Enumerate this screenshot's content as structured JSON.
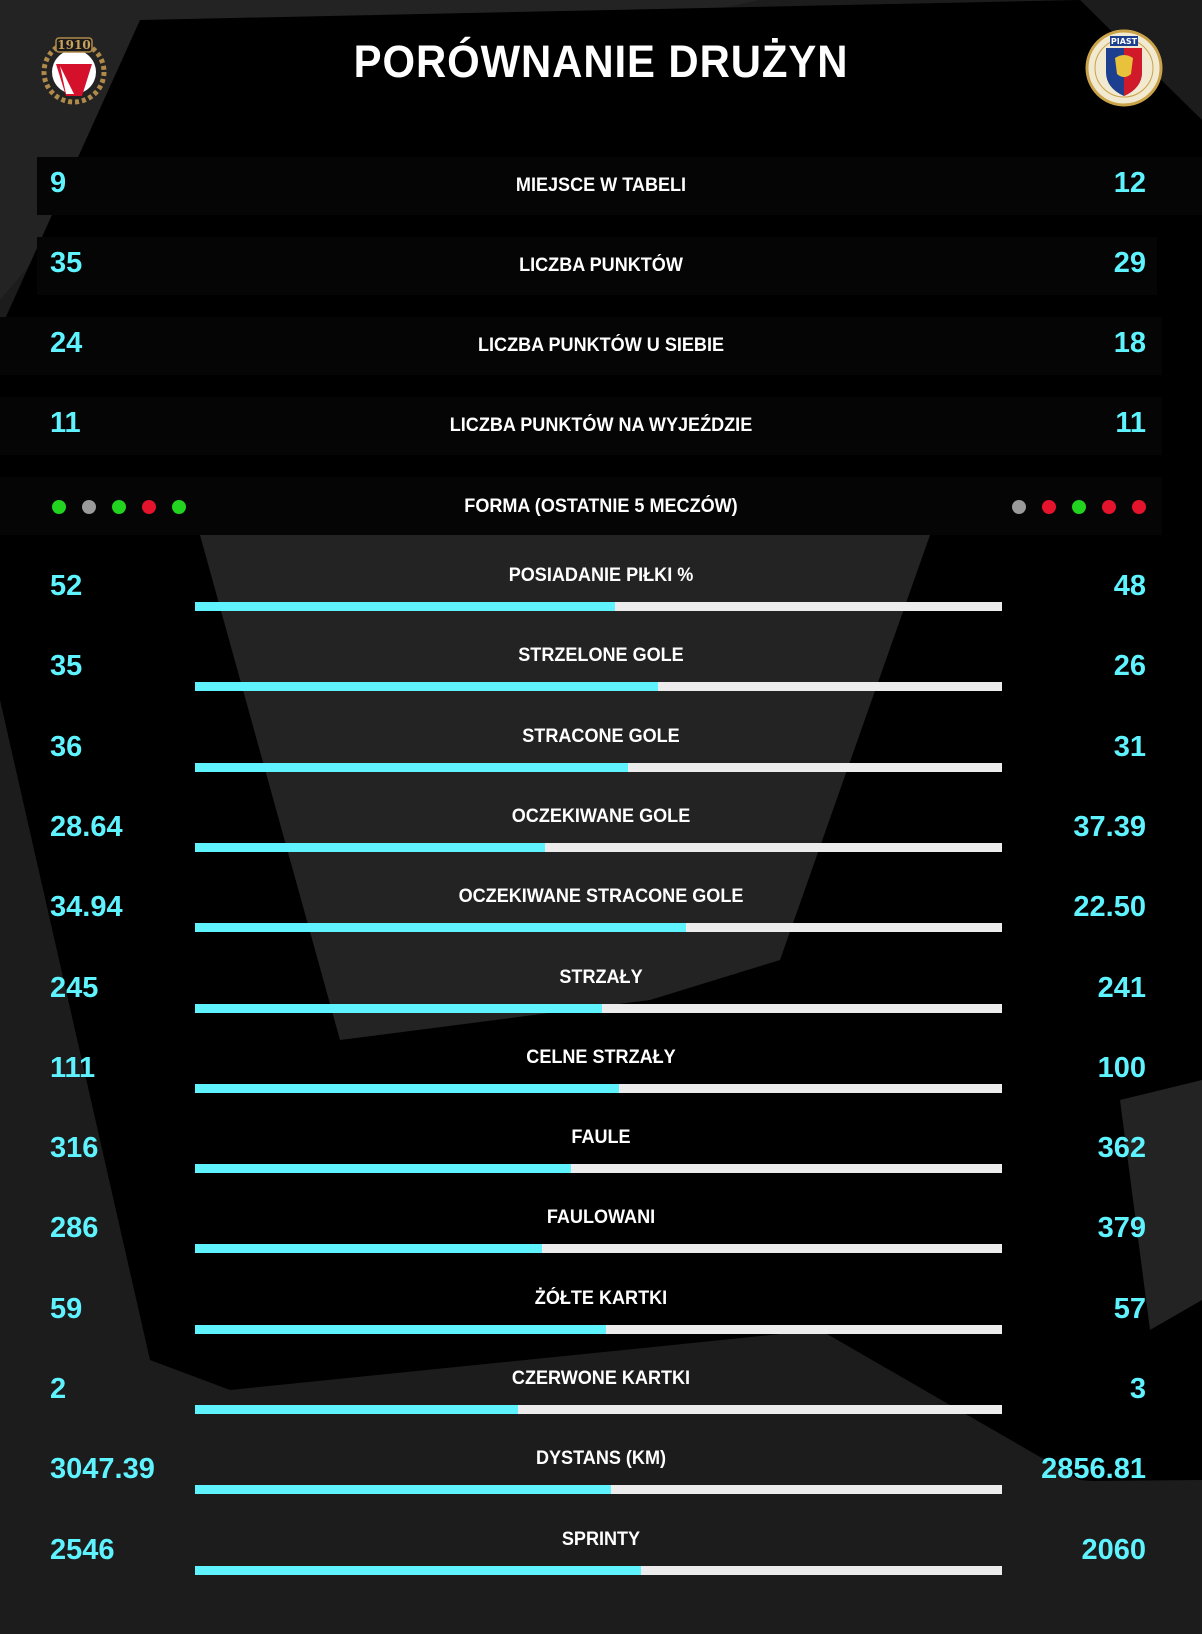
{
  "header": {
    "title": "PORÓWNANIE DRUŻYN",
    "home_crest": {
      "icon": "widzew-crest-icon",
      "year": "1910"
    },
    "away_crest": {
      "icon": "piast-crest-icon",
      "top_text": "PIAST"
    }
  },
  "colors": {
    "accent": "#5ef3ff",
    "background": "#1c1c1c",
    "panel": "#050505",
    "track": "#ececec",
    "win": "#22d41f",
    "draw": "#9a9a9a",
    "loss": "#e5132c"
  },
  "simple_stats": [
    {
      "label": "MIEJSCE W TABELI",
      "home": "9",
      "away": "12"
    },
    {
      "label": "LICZBA PUNKTÓW",
      "home": "35",
      "away": "29"
    },
    {
      "label": "LICZBA PUNKTÓW U SIEBIE",
      "home": "24",
      "away": "18"
    },
    {
      "label": "LICZBA PUNKTÓW NA WYJEŹDZIE",
      "home": "11",
      "away": "11"
    }
  ],
  "form": {
    "label": "FORMA (OSTATNIE 5 MECZÓW)",
    "home": [
      "win",
      "draw",
      "win",
      "loss",
      "win"
    ],
    "away": [
      "draw",
      "loss",
      "win",
      "loss",
      "loss"
    ]
  },
  "bar_stats": [
    {
      "label": "POSIADANIE PIŁKI %",
      "home": "52",
      "away": "48",
      "home_share": 0.52
    },
    {
      "label": "STRZELONE GOLE",
      "home": "35",
      "away": "26",
      "home_share": 0.574
    },
    {
      "label": "STRACONE GOLE",
      "home": "36",
      "away": "31",
      "home_share": 0.537
    },
    {
      "label": "OCZEKIWANE GOLE",
      "home": "28.64",
      "away": "37.39",
      "home_share": 0.434
    },
    {
      "label": "OCZEKIWANE STRACONE GOLE",
      "home": "34.94",
      "away": "22.50",
      "home_share": 0.608
    },
    {
      "label": "STRZAŁY",
      "home": "245",
      "away": "241",
      "home_share": 0.504
    },
    {
      "label": "CELNE STRZAŁY",
      "home": "111",
      "away": "100",
      "home_share": 0.526
    },
    {
      "label": "FAULE",
      "home": "316",
      "away": "362",
      "home_share": 0.466
    },
    {
      "label": "FAULOWANI",
      "home": "286",
      "away": "379",
      "home_share": 0.43
    },
    {
      "label": "ŻÓŁTE KARTKI",
      "home": "59",
      "away": "57",
      "home_share": 0.509
    },
    {
      "label": "CZERWONE KARTKI",
      "home": "2",
      "away": "3",
      "home_share": 0.4
    },
    {
      "label": "DYSTANS (KM)",
      "home": "3047.39",
      "away": "2856.81",
      "home_share": 0.516
    },
    {
      "label": "SPRINTY",
      "home": "2546",
      "away": "2060",
      "home_share": 0.553
    }
  ]
}
